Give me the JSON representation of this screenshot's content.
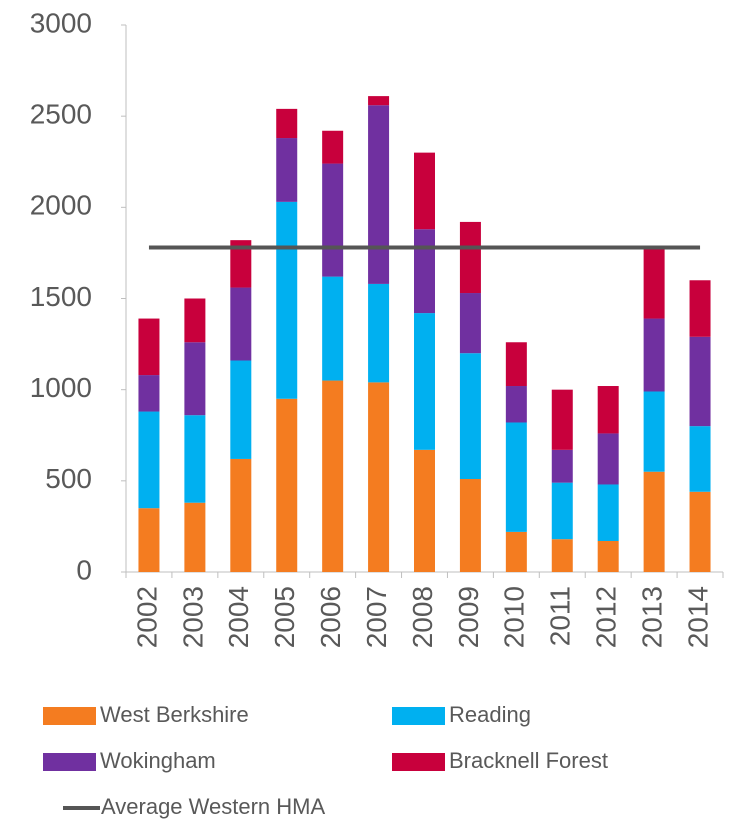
{
  "chart_data": {
    "type": "bar",
    "stacked": true,
    "categories": [
      "2002",
      "2003",
      "2004",
      "2005",
      "2006",
      "2007",
      "2008",
      "2009",
      "2010",
      "2011",
      "2012",
      "2013",
      "2014"
    ],
    "series": [
      {
        "name": "West Berkshire",
        "color": "#f47c20",
        "values": [
          350,
          380,
          620,
          950,
          1050,
          1040,
          670,
          510,
          220,
          180,
          170,
          550,
          440
        ]
      },
      {
        "name": "Reading",
        "color": "#00b0f0",
        "values": [
          530,
          480,
          540,
          1080,
          570,
          540,
          750,
          690,
          600,
          310,
          310,
          440,
          360
        ]
      },
      {
        "name": "Wokingham",
        "color": "#7030a0",
        "values": [
          200,
          400,
          400,
          350,
          620,
          980,
          460,
          330,
          200,
          180,
          280,
          400,
          490
        ]
      },
      {
        "name": "Bracknell Forest",
        "color": "#c8003c",
        "values": [
          310,
          240,
          260,
          160,
          180,
          50,
          420,
          390,
          240,
          330,
          260,
          390,
          310
        ]
      },
      {
        "name": "Average Western HMA",
        "color": "#555555",
        "type": "line",
        "values": [
          1780,
          1780,
          1780,
          1780,
          1780,
          1780,
          1780,
          1780,
          1780,
          1780,
          1780,
          1780,
          1780
        ]
      }
    ],
    "ylim": [
      0,
      3000
    ],
    "yticks": [
      0,
      500,
      1000,
      1500,
      2000,
      2500,
      3000
    ],
    "grid": false
  }
}
